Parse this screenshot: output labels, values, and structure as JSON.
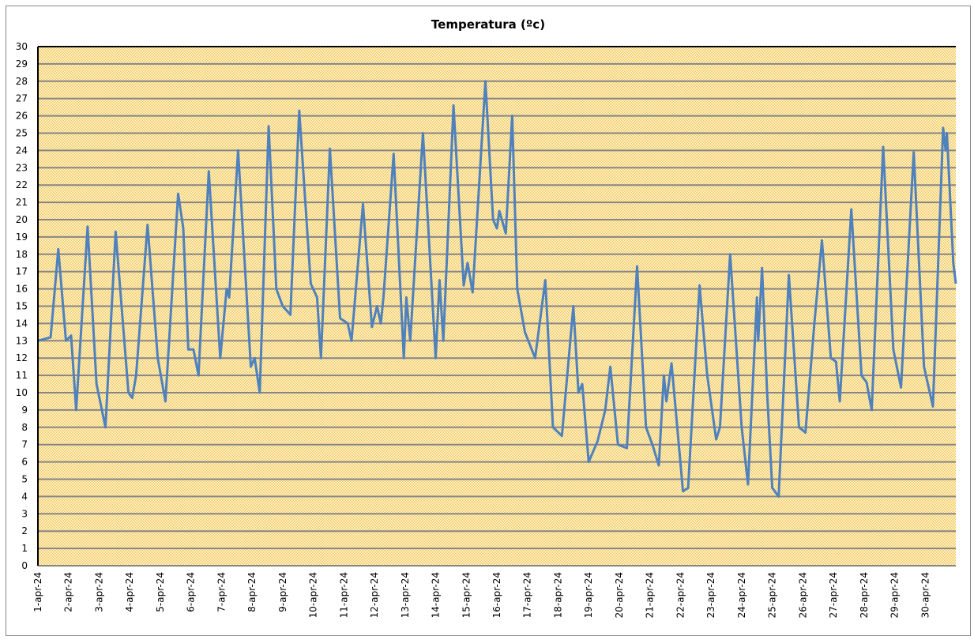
{
  "chart_data": {
    "type": "line",
    "title": "Temperatura (ºc)",
    "xlabel": "",
    "ylabel": "",
    "ylim": [
      0,
      30
    ],
    "xlim": [
      "2024-04-01T00:00",
      "2024-05-01T00:00"
    ],
    "grid": true,
    "legend": "none",
    "colors": {
      "line": "#4F81BD",
      "plot_background": "#F3C13A",
      "grid": "#868686"
    },
    "y_ticks": [
      "0",
      "1",
      "2",
      "3",
      "4",
      "5",
      "6",
      "7",
      "8",
      "9",
      "10",
      "11",
      "12",
      "13",
      "14",
      "15",
      "16",
      "17",
      "18",
      "19",
      "20",
      "21",
      "22",
      "23",
      "24",
      "25",
      "26",
      "27",
      "28",
      "29",
      "30"
    ],
    "x_ticks": [
      "1-apr-24",
      "2-apr-24",
      "3-apr-24",
      "4-apr-24",
      "5-apr-24",
      "6-apr-24",
      "7-apr-24",
      "8-apr-24",
      "9-apr-24",
      "10-apr-24",
      "11-apr-24",
      "12-apr-24",
      "13-apr-24",
      "14-apr-24",
      "15-apr-24",
      "16-apr-24",
      "17-apr-24",
      "18-apr-24",
      "19-apr-24",
      "20-apr-24",
      "21-apr-24",
      "22-apr-24",
      "23-apr-24",
      "24-apr-24",
      "25-apr-24",
      "26-apr-24",
      "27-apr-24",
      "28-apr-24",
      "29-apr-24",
      "30-apr-24"
    ],
    "series": [
      {
        "points": [
          [
            "2024-04-01T00:00",
            13
          ],
          [
            "2024-04-01T10:00",
            13.2
          ],
          [
            "2024-04-01T16:00",
            18.3
          ],
          [
            "2024-04-01T22:00",
            13
          ],
          [
            "2024-04-02T02:00",
            13.3
          ],
          [
            "2024-04-02T06:00",
            9
          ],
          [
            "2024-04-02T15:00",
            19.6
          ],
          [
            "2024-04-02T22:00",
            10.5
          ],
          [
            "2024-04-03T05:00",
            8
          ],
          [
            "2024-04-03T13:00",
            19.3
          ],
          [
            "2024-04-03T23:00",
            10
          ],
          [
            "2024-04-04T02:00",
            9.7
          ],
          [
            "2024-04-04T05:00",
            11
          ],
          [
            "2024-04-04T14:00",
            19.7
          ],
          [
            "2024-04-04T22:00",
            12
          ],
          [
            "2024-04-05T04:00",
            9.5
          ],
          [
            "2024-04-05T14:00",
            21.5
          ],
          [
            "2024-04-05T18:00",
            19.5
          ],
          [
            "2024-04-05T22:00",
            12.5
          ],
          [
            "2024-04-06T02:00",
            12.5
          ],
          [
            "2024-04-06T06:00",
            11
          ],
          [
            "2024-04-06T14:00",
            22.8
          ],
          [
            "2024-04-06T23:00",
            12
          ],
          [
            "2024-04-07T04:00",
            16
          ],
          [
            "2024-04-07T06:00",
            15.5
          ],
          [
            "2024-04-07T13:00",
            24
          ],
          [
            "2024-04-07T23:00",
            11.5
          ],
          [
            "2024-04-08T02:00",
            12
          ],
          [
            "2024-04-08T06:00",
            10
          ],
          [
            "2024-04-08T13:00",
            25.4
          ],
          [
            "2024-04-08T19:00",
            16
          ],
          [
            "2024-04-09T00:00",
            15
          ],
          [
            "2024-04-09T06:00",
            14.5
          ],
          [
            "2024-04-09T13:00",
            26.3
          ],
          [
            "2024-04-09T22:00",
            16.3
          ],
          [
            "2024-04-10T03:00",
            15.5
          ],
          [
            "2024-04-10T06:00",
            12
          ],
          [
            "2024-04-10T13:00",
            24.1
          ],
          [
            "2024-04-10T21:00",
            14.3
          ],
          [
            "2024-04-11T03:00",
            14
          ],
          [
            "2024-04-11T06:00",
            13
          ],
          [
            "2024-04-11T15:00",
            20.9
          ],
          [
            "2024-04-11T22:00",
            13.8
          ],
          [
            "2024-04-12T02:00",
            15
          ],
          [
            "2024-04-12T05:00",
            14
          ],
          [
            "2024-04-12T07:00",
            15.5
          ],
          [
            "2024-04-12T15:00",
            23.8
          ],
          [
            "2024-04-12T23:00",
            12
          ],
          [
            "2024-04-13T01:00",
            15.5
          ],
          [
            "2024-04-13T04:00",
            13
          ],
          [
            "2024-04-13T14:00",
            25
          ],
          [
            "2024-04-14T00:00",
            12
          ],
          [
            "2024-04-14T03:00",
            16.5
          ],
          [
            "2024-04-14T06:00",
            13
          ],
          [
            "2024-04-14T14:00",
            26.6
          ],
          [
            "2024-04-14T22:00",
            16.2
          ],
          [
            "2024-04-15T01:00",
            17.5
          ],
          [
            "2024-04-15T05:00",
            15.8
          ],
          [
            "2024-04-15T15:00",
            28
          ],
          [
            "2024-04-15T21:00",
            20
          ],
          [
            "2024-04-16T00:00",
            19.5
          ],
          [
            "2024-04-16T02:00",
            20.5
          ],
          [
            "2024-04-16T07:00",
            19.2
          ],
          [
            "2024-04-16T12:00",
            26
          ],
          [
            "2024-04-16T16:00",
            16
          ],
          [
            "2024-04-16T22:00",
            13.5
          ],
          [
            "2024-04-17T06:00",
            12
          ],
          [
            "2024-04-17T14:00",
            16.5
          ],
          [
            "2024-04-17T20:00",
            8
          ],
          [
            "2024-04-18T03:00",
            7.5
          ],
          [
            "2024-04-18T12:00",
            15
          ],
          [
            "2024-04-18T16:00",
            10
          ],
          [
            "2024-04-18T19:00",
            10.5
          ],
          [
            "2024-04-19T00:00",
            6
          ],
          [
            "2024-04-19T07:00",
            7.2
          ],
          [
            "2024-04-19T13:00",
            9
          ],
          [
            "2024-04-19T17:00",
            11.5
          ],
          [
            "2024-04-19T23:00",
            7
          ],
          [
            "2024-04-20T06:00",
            6.8
          ],
          [
            "2024-04-20T14:00",
            17.3
          ],
          [
            "2024-04-20T21:00",
            8
          ],
          [
            "2024-04-21T02:00",
            7
          ],
          [
            "2024-04-21T07:00",
            5.8
          ],
          [
            "2024-04-21T11:00",
            11
          ],
          [
            "2024-04-21T13:00",
            9.5
          ],
          [
            "2024-04-21T17:00",
            11.7
          ],
          [
            "2024-04-22T02:00",
            4.3
          ],
          [
            "2024-04-22T06:00",
            4.5
          ],
          [
            "2024-04-22T15:00",
            16.2
          ],
          [
            "2024-04-22T21:00",
            11
          ],
          [
            "2024-04-23T04:00",
            7.3
          ],
          [
            "2024-04-23T07:00",
            8
          ],
          [
            "2024-04-23T15:00",
            18
          ],
          [
            "2024-04-24T00:00",
            8
          ],
          [
            "2024-04-24T05:00",
            4.7
          ],
          [
            "2024-04-24T12:00",
            15.5
          ],
          [
            "2024-04-24T13:00",
            13
          ],
          [
            "2024-04-24T16:00",
            17.2
          ],
          [
            "2024-04-24T20:00",
            10
          ],
          [
            "2024-04-25T00:00",
            4.5
          ],
          [
            "2024-04-25T05:00",
            4
          ],
          [
            "2024-04-25T13:00",
            16.8
          ],
          [
            "2024-04-25T21:00",
            8
          ],
          [
            "2024-04-26T02:00",
            7.7
          ],
          [
            "2024-04-26T09:00",
            14
          ],
          [
            "2024-04-26T15:00",
            18.8
          ],
          [
            "2024-04-26T22:00",
            12
          ],
          [
            "2024-04-27T02:00",
            11.8
          ],
          [
            "2024-04-27T05:00",
            9.5
          ],
          [
            "2024-04-27T14:00",
            20.6
          ],
          [
            "2024-04-27T22:00",
            11
          ],
          [
            "2024-04-28T02:00",
            10.6
          ],
          [
            "2024-04-28T06:00",
            9
          ],
          [
            "2024-04-28T15:00",
            24.2
          ],
          [
            "2024-04-28T23:00",
            12.5
          ],
          [
            "2024-04-29T05:00",
            10.3
          ],
          [
            "2024-04-29T15:00",
            23.9
          ],
          [
            "2024-04-29T23:00",
            11.5
          ],
          [
            "2024-04-30T06:00",
            9.2
          ],
          [
            "2024-04-30T14:00",
            25.3
          ],
          [
            "2024-04-30T16:00",
            24
          ],
          [
            "2024-04-30T17:00",
            25
          ],
          [
            "2024-04-30T22:00",
            17.5
          ],
          [
            "2024-05-01T00:00",
            16.3
          ]
        ]
      }
    ]
  }
}
